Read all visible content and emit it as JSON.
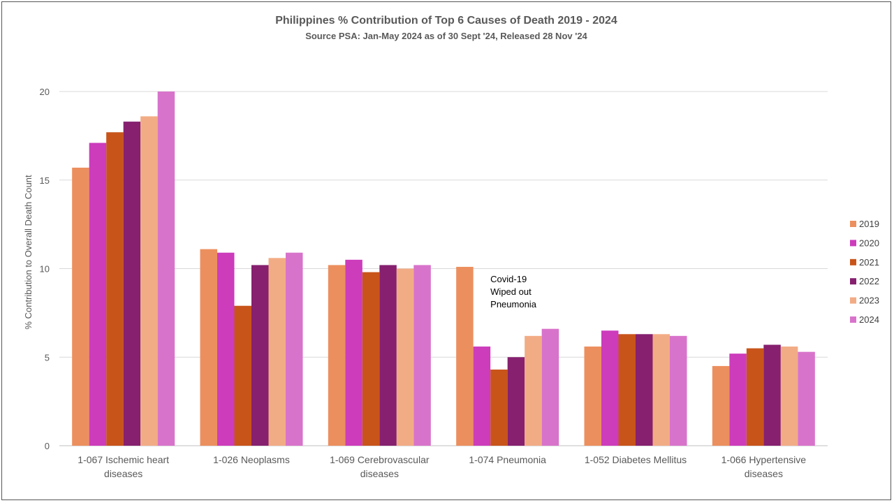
{
  "chart_data": {
    "type": "bar",
    "title": "Philippines % Contribution of Top 6 Causes of Death 2019 - 2024",
    "subtitle": "Source PSA: Jan-May 2024 as of 30 Sept '24, Released 28 Nov '24",
    "ylabel": "% Contribution to Overall Death Count",
    "xlabel": "",
    "ylim": [
      0,
      20
    ],
    "yticks": [
      0,
      5,
      10,
      15,
      20
    ],
    "grid": true,
    "legend_position": "right",
    "categories": [
      [
        "1-067  Ischemic heart",
        "diseases"
      ],
      [
        "1-026  Neoplasms"
      ],
      [
        "1-069  Cerebrovascular",
        "diseases"
      ],
      [
        "1-074  Pneumonia"
      ],
      [
        "1-052  Diabetes Mellitus"
      ],
      [
        "1-066  Hypertensive",
        "diseases"
      ]
    ],
    "series": [
      {
        "name": "2019",
        "color": "#EC8F5E",
        "values": [
          15.7,
          11.1,
          10.2,
          10.1,
          5.6,
          4.5
        ]
      },
      {
        "name": "2020",
        "color": "#CC3CBB",
        "values": [
          17.1,
          10.9,
          10.5,
          5.6,
          6.5,
          5.2
        ]
      },
      {
        "name": "2021",
        "color": "#C8541A",
        "values": [
          17.7,
          7.9,
          9.8,
          4.3,
          6.3,
          5.5
        ]
      },
      {
        "name": "2022",
        "color": "#86206F",
        "values": [
          18.3,
          10.2,
          10.2,
          5.0,
          6.3,
          5.7
        ]
      },
      {
        "name": "2023",
        "color": "#F2AC85",
        "values": [
          18.6,
          10.6,
          10.0,
          6.2,
          6.3,
          5.6
        ]
      },
      {
        "name": "2024",
        "color": "#D873CB",
        "values": [
          20.0,
          10.9,
          10.2,
          6.6,
          6.2,
          5.3
        ]
      }
    ],
    "annotation": [
      "Covid-19",
      "Wiped out",
      "Pneumonia"
    ]
  }
}
